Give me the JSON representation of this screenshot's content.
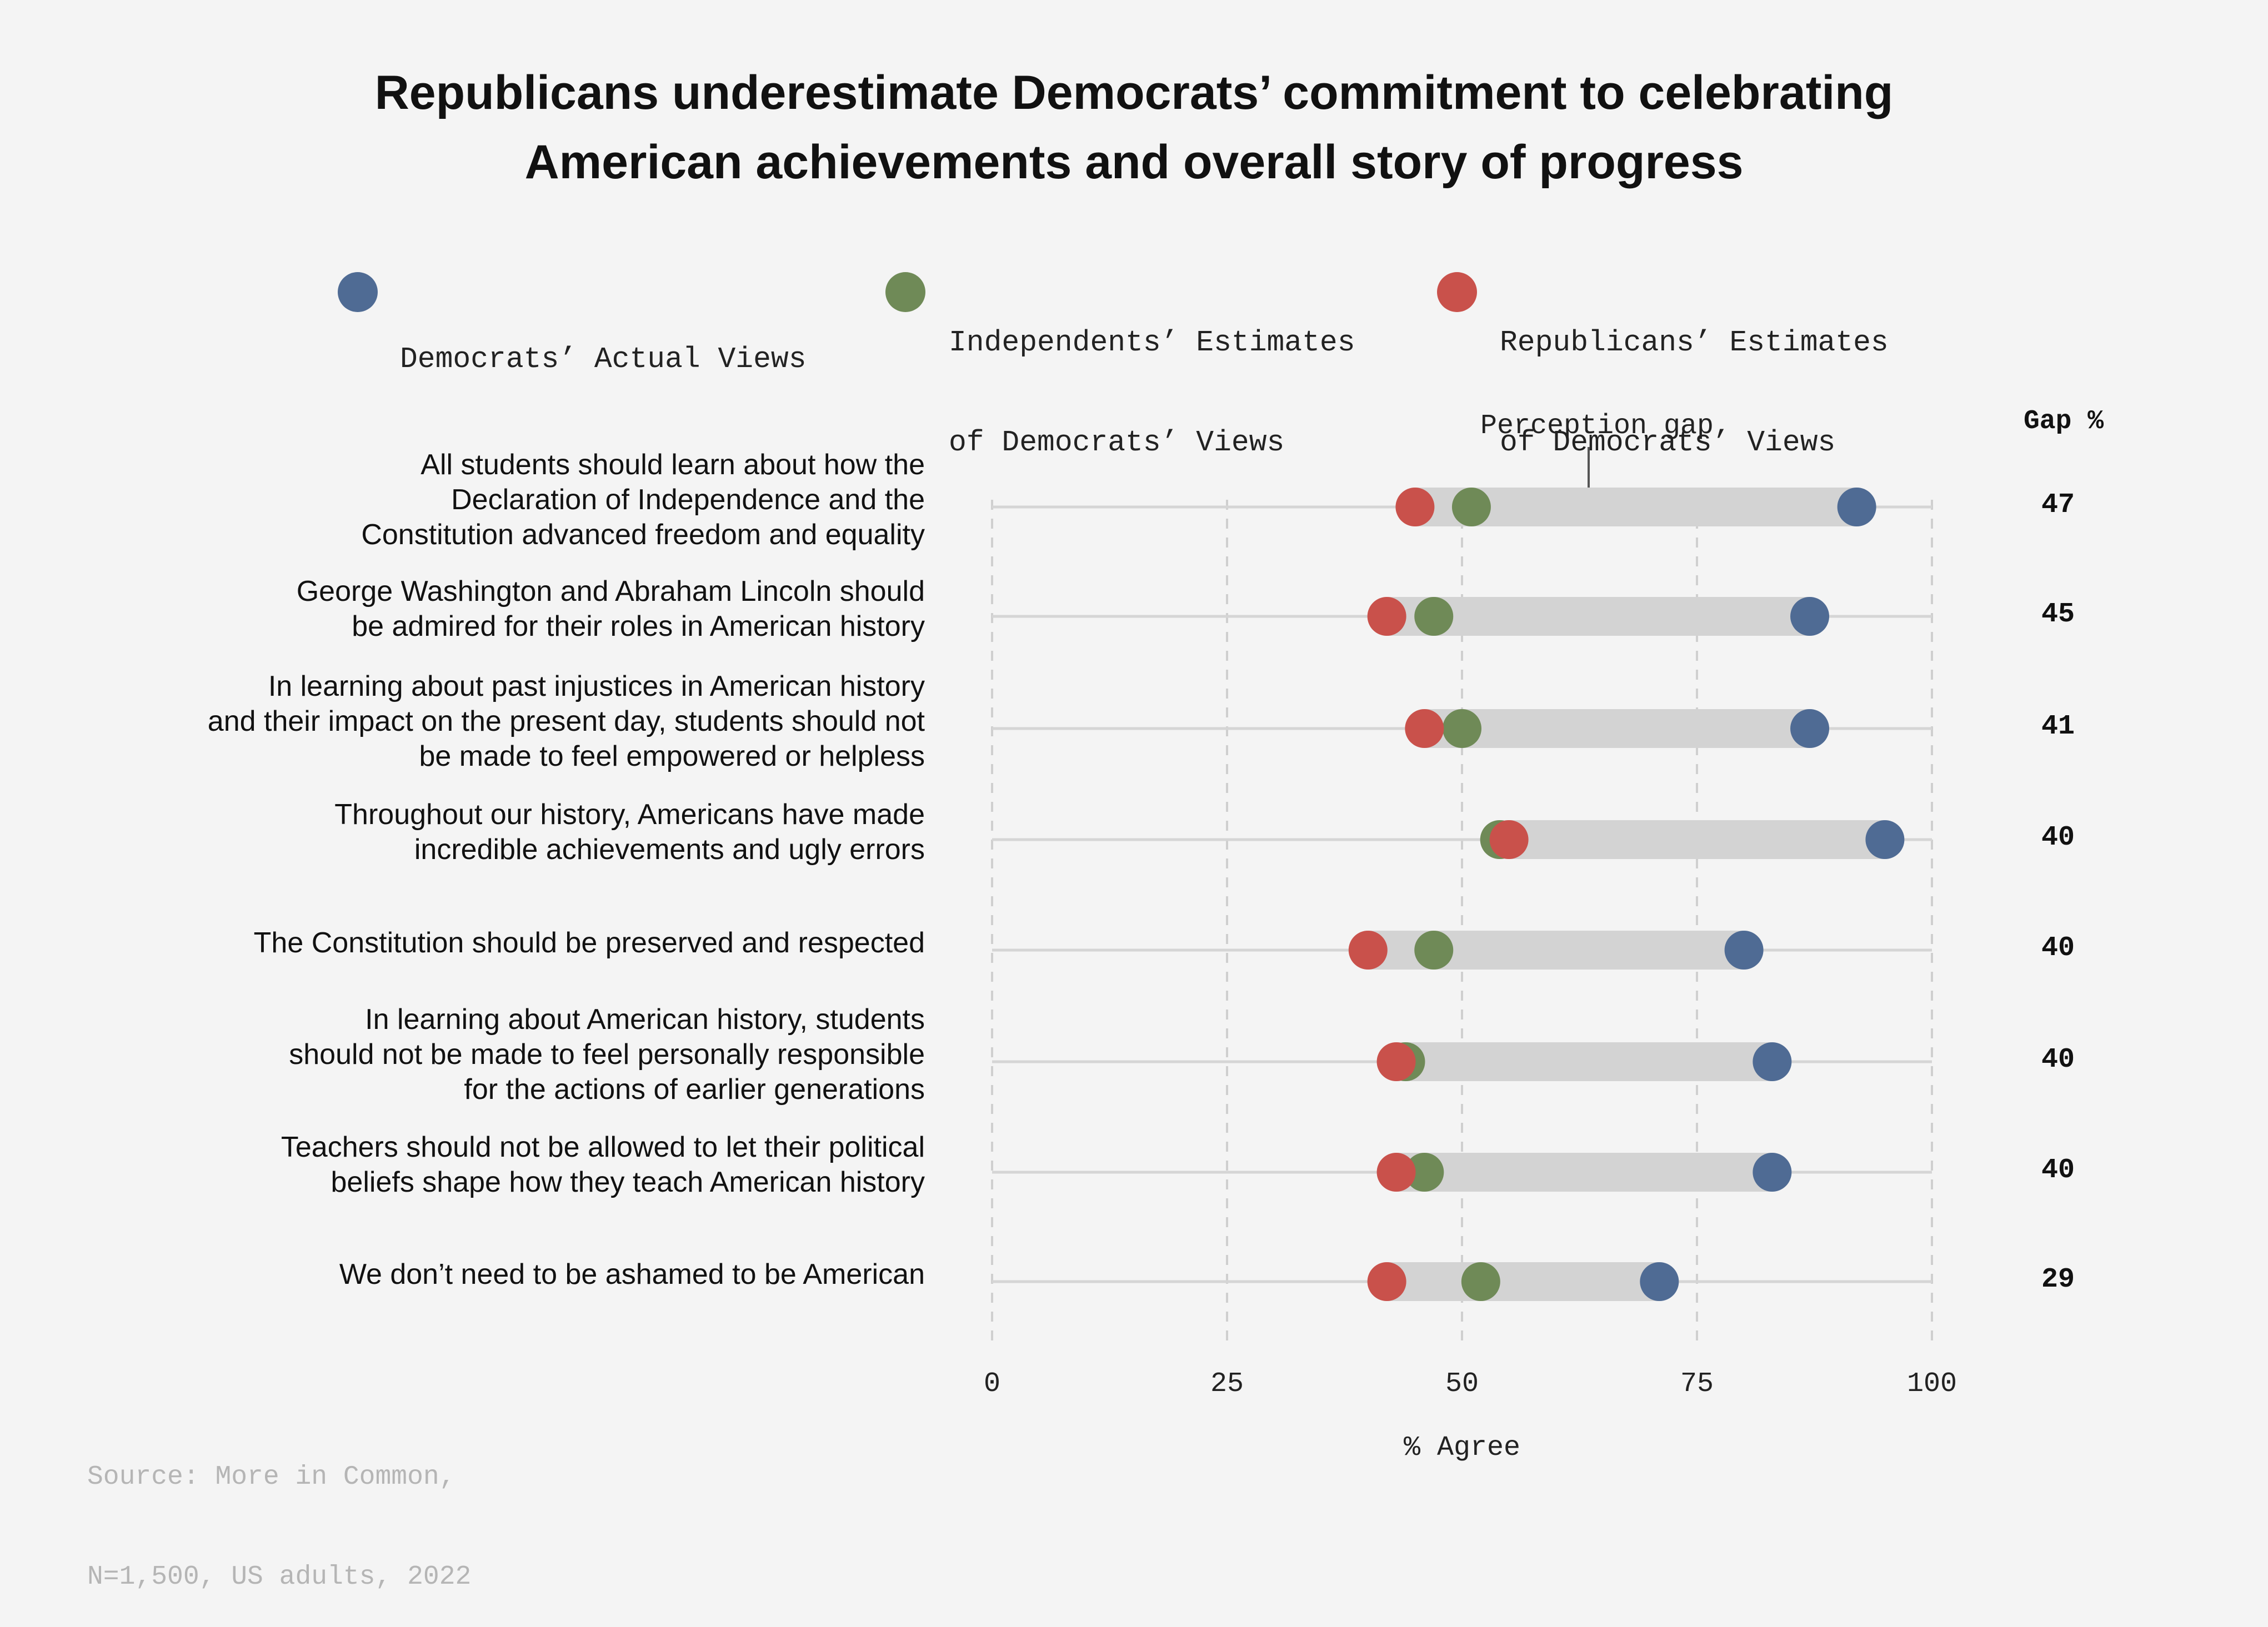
{
  "title_lines": [
    "Republicans underestimate Democrats’ commitment to celebrating",
    "American achievements and overall story of progress"
  ],
  "legend": [
    {
      "lines": [
        "Democrats’ Actual Views"
      ],
      "color": "#4f6b94"
    },
    {
      "lines": [
        "Independents’ Estimates",
        "of Democrats’ Views"
      ],
      "color": "#6f8a57"
    },
    {
      "lines": [
        "Republicans’ Estimates",
        "of Democrats’ Views"
      ],
      "color": "#c9514b"
    }
  ],
  "gap_header": "Gap %",
  "annotation": "Perception gap",
  "source_lines": [
    "Source: More in Common,",
    "N=1,500, US adults, 2022"
  ],
  "chart_data": {
    "type": "dot-range",
    "xlabel": "% Agree",
    "xlim": [
      0,
      100
    ],
    "xticks": [
      "0",
      "25",
      "50",
      "75",
      "100"
    ],
    "grid": true,
    "legend_position": "top",
    "series": [
      {
        "name": "Democrats’ Actual Views",
        "values": [
          92,
          87,
          87,
          95,
          80,
          83,
          83,
          71
        ]
      },
      {
        "name": "Independents’ Estimates of Democrats’ Views",
        "values": [
          51,
          47,
          50,
          54,
          47,
          44,
          46,
          52
        ]
      },
      {
        "name": "Republicans’ Estimates of Democrats’ Views",
        "values": [
          45,
          42,
          46,
          55,
          40,
          43,
          43,
          42
        ]
      }
    ],
    "categories": [
      {
        "lines": [
          "All students should learn about how the",
          "Declaration of Independence and the",
          "Constitution advanced freedom and equality"
        ],
        "gap": "47"
      },
      {
        "lines": [
          "George Washington and Abraham Lincoln should",
          "be admired for their roles in American history"
        ],
        "gap": "45"
      },
      {
        "lines": [
          "In learning about past injustices in American history",
          "and their impact on the present day, students should not",
          "be made to feel empowered or helpless"
        ],
        "gap": "41"
      },
      {
        "lines": [
          "Throughout our history, Americans have made",
          "incredible achievements and ugly errors"
        ],
        "gap": "40"
      },
      {
        "lines": [
          "The Constitution should be preserved and respected"
        ],
        "gap": "40"
      },
      {
        "lines": [
          "In learning about American history, students",
          "should not be made to feel personally responsible",
          "for the actions of earlier generations"
        ],
        "gap": "40"
      },
      {
        "lines": [
          "Teachers should not be allowed to let their political",
          "beliefs shape how they teach American history"
        ],
        "gap": "40"
      },
      {
        "lines": [
          "We don’t need to be ashamed to be American"
        ],
        "gap": "29"
      }
    ]
  }
}
